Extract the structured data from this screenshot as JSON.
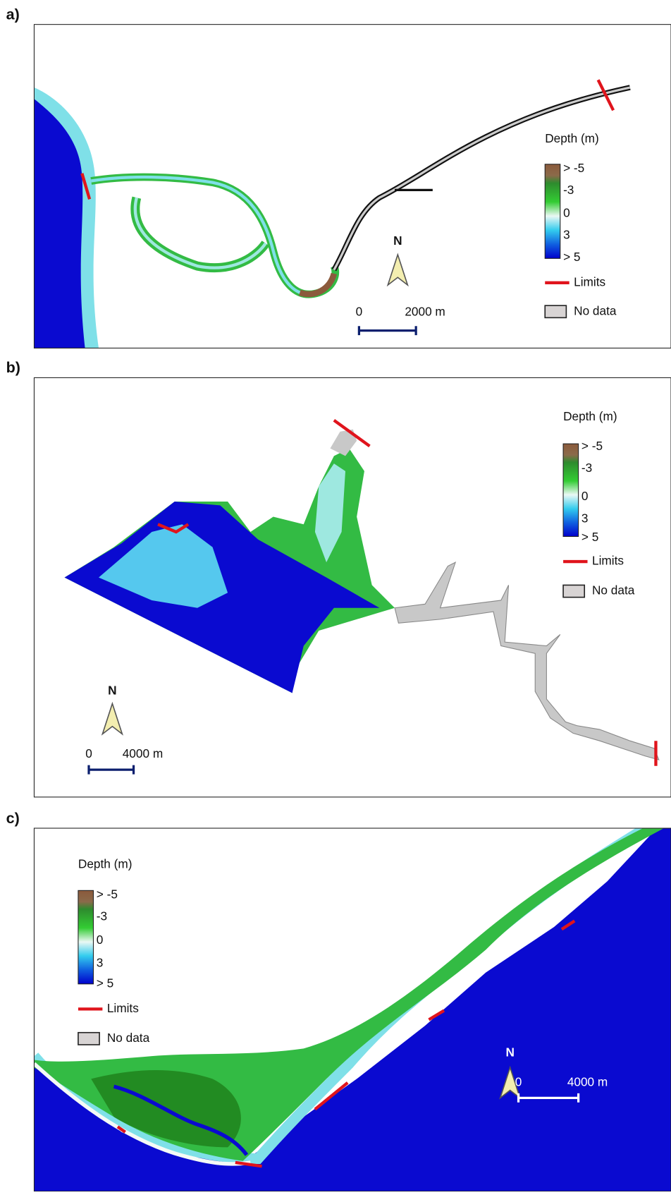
{
  "panels": [
    {
      "label": "a)",
      "legend": {
        "title": "Depth (m)",
        "scale": [
          "> -5",
          "-3",
          "0",
          "3",
          "> 5"
        ],
        "limits": "Limits",
        "no_data": "No data"
      },
      "north": "N",
      "scale_bar": {
        "start": "0",
        "end": "2000 m"
      }
    },
    {
      "label": "b)",
      "legend": {
        "title": "Depth (m)",
        "scale": [
          "> -5",
          "-3",
          "0",
          "3",
          "> 5"
        ],
        "limits": "Limits",
        "no_data": "No data"
      },
      "north": "N",
      "scale_bar": {
        "start": "0",
        "end": "4000 m"
      }
    },
    {
      "label": "c)",
      "legend": {
        "title": "Depth (m)",
        "scale": [
          "> -5",
          "-3",
          "0",
          "3",
          "> 5"
        ],
        "limits": "Limits",
        "no_data": "No data"
      },
      "north": "N",
      "scale_bar": {
        "start": "0",
        "end": "4000 m"
      }
    }
  ]
}
